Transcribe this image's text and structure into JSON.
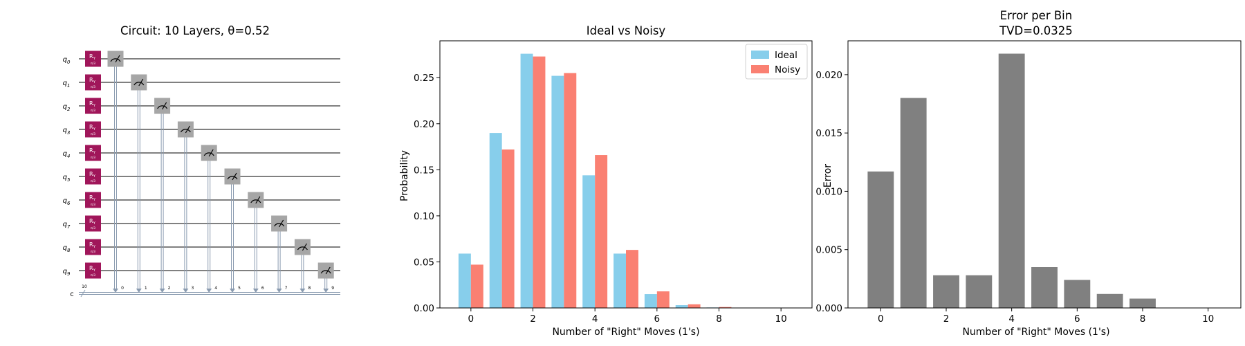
{
  "circuit": {
    "title": "Circuit: 10 Layers, θ=0.52",
    "qubit_labels": [
      "q",
      "q",
      "q",
      "q",
      "q",
      "q",
      "q",
      "q",
      "q",
      "q"
    ],
    "qubit_subscripts": [
      "0",
      "1",
      "2",
      "3",
      "4",
      "5",
      "6",
      "7",
      "8",
      "9"
    ],
    "gate_label": "R",
    "gate_sub": "Y",
    "gate_param": "π/3",
    "classical_label": "c",
    "classical_width": "10",
    "measure_indices": [
      "0",
      "1",
      "2",
      "3",
      "4",
      "5",
      "6",
      "7",
      "8",
      "9"
    ],
    "gate_color": "#a0165a",
    "measure_color": "#a6a6a6"
  },
  "chart_data": [
    {
      "type": "bar",
      "title": "Ideal vs Noisy",
      "xlabel": "Number of \"Right\" Moves (1's)",
      "ylabel": "Probability",
      "x": [
        0,
        1,
        2,
        3,
        4,
        5,
        6,
        7,
        8,
        9,
        10
      ],
      "xticks": [
        "0",
        "2",
        "4",
        "6",
        "8",
        "10"
      ],
      "yticks": [
        "0.00",
        "0.05",
        "0.10",
        "0.15",
        "0.20",
        "0.25"
      ],
      "xlim": [
        -1.0,
        11.0
      ],
      "ylim": [
        0,
        0.29
      ],
      "legend": "top-right",
      "series": [
        {
          "name": "Ideal",
          "color": "#87ceeb",
          "values": [
            0.059,
            0.19,
            0.276,
            0.252,
            0.144,
            0.059,
            0.015,
            0.003,
            0.0005,
            0.0,
            0.0
          ]
        },
        {
          "name": "Noisy",
          "color": "#fa8072",
          "values": [
            0.047,
            0.172,
            0.273,
            0.255,
            0.166,
            0.063,
            0.018,
            0.004,
            0.001,
            0.0,
            0.0
          ]
        }
      ]
    },
    {
      "type": "bar",
      "title": "Error per Bin",
      "subtitle": "TVD=0.0325",
      "xlabel": "Number of \"Right\" Moves (1's)",
      "ylabel": "Error",
      "x": [
        0,
        1,
        2,
        3,
        4,
        5,
        6,
        7,
        8,
        9,
        10
      ],
      "xticks": [
        "0",
        "2",
        "4",
        "6",
        "8",
        "10"
      ],
      "yticks": [
        "0.000",
        "0.005",
        "0.010",
        "0.015",
        "0.020"
      ],
      "xlim": [
        -1.0,
        11.0
      ],
      "ylim": [
        0,
        0.0229
      ],
      "color": "#808080",
      "values": [
        0.0117,
        0.018,
        0.0028,
        0.0028,
        0.0218,
        0.0035,
        0.0024,
        0.0012,
        0.0008,
        0.0,
        0.0
      ]
    }
  ]
}
